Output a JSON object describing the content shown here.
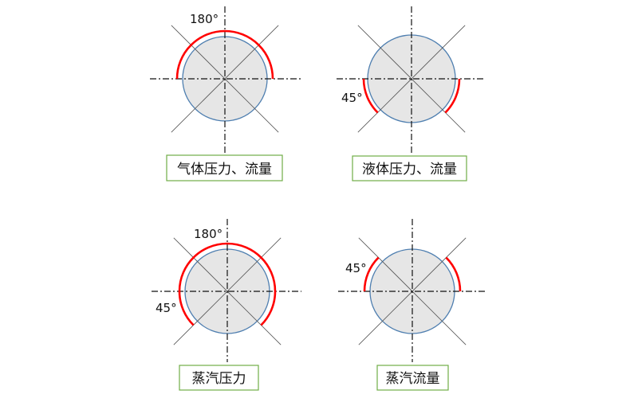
{
  "colors": {
    "arc": "#ff0000",
    "circle_fill": "#e6e6e6",
    "circle_stroke": "#4f7fb0",
    "box_stroke": "#70ad47"
  },
  "panels": [
    {
      "label": "气体压力、流量",
      "angle_labels": [
        "180°"
      ],
      "arcs_deg": [
        [
          0,
          180
        ]
      ]
    },
    {
      "label": "液体压力、流量",
      "angle_labels": [
        "45°"
      ],
      "arcs_deg": [
        [
          180,
          225
        ],
        [
          315,
          360
        ]
      ]
    },
    {
      "label": "蒸汽压力",
      "angle_labels": [
        "180°",
        "45°"
      ],
      "arcs_deg": [
        [
          -45,
          225
        ]
      ]
    },
    {
      "label": "蒸汽流量",
      "angle_labels": [
        "45°"
      ],
      "arcs_deg": [
        [
          135,
          180
        ],
        [
          0,
          45
        ]
      ]
    }
  ]
}
